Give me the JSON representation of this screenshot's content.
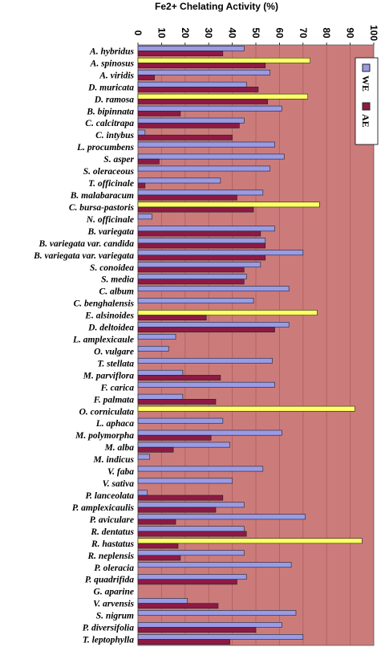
{
  "chart_data": {
    "type": "bar",
    "orientation": "horizontal",
    "title": "Fe2+ Chelating Activity (%)",
    "xlim": [
      0,
      100
    ],
    "xticks": [
      "0",
      "10",
      "20",
      "30",
      "40",
      "50",
      "60",
      "70",
      "80",
      "90",
      "100"
    ],
    "grid": "vertical",
    "legend_position": "top-right",
    "colors": {
      "plot_bg": "#cc7b7b",
      "WE": "#9a9ae6",
      "AE": "#8c1a44",
      "highlight": "#ffff66",
      "gridline": "#b06060"
    },
    "categories": [
      "A. hybridus",
      "A. spinosus",
      "A. viridis",
      "D. muricata",
      "D. ramosa",
      "B. bipinnata",
      "C. calcitrapa",
      "C. intybus",
      "L. procumbens",
      "S. asper",
      "S. oleraceous",
      "T. officinale",
      "B. malabaracum",
      "C. bursa-pastoris",
      "N. officinale",
      "B. variegata",
      "B. variegata var. candida",
      "B. variegata var. variegata",
      "S. conoidea",
      "S. media",
      "C. album",
      "C. benghalensis",
      "E. alsinoides",
      "D. deltoidea",
      "L. amplexicaule",
      "O. vulgare",
      "T. stellata",
      "M. parviflora",
      "F. carica",
      "F. palmata",
      "O. corniculata",
      "L. aphaca",
      "M. polymorpha",
      "M. alba",
      "M. indicus",
      "V. faba",
      "V. sativa",
      "P. lanceolata",
      "P. amplexicaulis",
      "P. aviculare",
      "R. dentatus",
      "R. hastatus",
      "R. neplensis",
      "P. oleracia",
      "P. quadrifida",
      "G. aparine",
      "V. arvensis",
      "S. nigrum",
      "P. diversifolia",
      "T. leptophylla"
    ],
    "series": [
      {
        "name": "WE",
        "values": [
          45,
          73,
          56,
          46,
          72,
          61,
          45,
          3,
          58,
          62,
          56,
          35,
          53,
          77,
          6,
          58,
          54,
          70,
          52,
          46,
          64,
          49,
          76,
          64,
          16,
          13,
          57,
          19,
          58,
          19,
          92,
          36,
          61,
          39,
          5,
          53,
          40,
          4,
          45,
          71,
          45,
          95,
          45,
          65,
          46,
          0,
          21,
          67,
          61,
          70
        ]
      },
      {
        "name": "AE",
        "values": [
          36,
          54,
          7,
          51,
          55,
          18,
          43,
          40,
          0,
          9,
          0,
          3,
          42,
          49,
          0,
          52,
          54,
          54,
          45,
          45,
          0,
          0,
          29,
          58,
          0,
          0,
          0,
          35,
          0,
          33,
          0,
          0,
          31,
          15,
          0,
          0,
          0,
          36,
          33,
          16,
          46,
          17,
          18,
          0,
          42,
          0,
          34,
          0,
          50,
          39
        ]
      }
    ],
    "highlighted_we": [
      "A. spinosus",
      "D. ramosa",
      "C. bursa-pastoris",
      "E. alsinoides",
      "O. corniculata",
      "R. hastatus"
    ]
  }
}
